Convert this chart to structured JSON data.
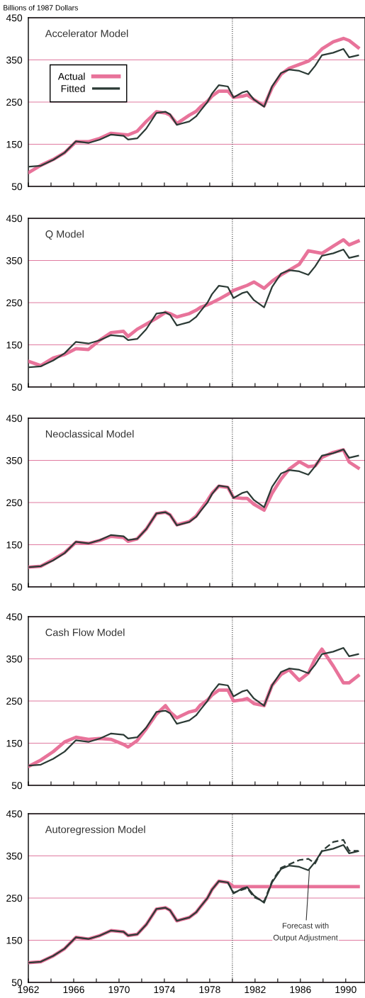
{
  "chart_data": [
    {
      "type": "line",
      "title": "Accelerator Model",
      "ylabel": "Billions of 1987 Dollars",
      "xlim": [
        1962,
        1991.7
      ],
      "ylim": [
        50,
        450
      ],
      "yticks": [
        50,
        150,
        250,
        350,
        450
      ],
      "xticks": [
        1962,
        {
          "value": 1964,
          "label": null
        },
        1966,
        {
          "value": 1968,
          "label": null
        },
        1970,
        {
          "value": 1972,
          "label": null
        },
        1974,
        {
          "value": 1976,
          "label": null
        },
        1978,
        {
          "value": 1980,
          "label": null
        },
        1982,
        {
          "value": 1984,
          "label": null
        },
        1986,
        {
          "value": 1988,
          "label": null
        },
        1990
      ],
      "tick_labels": "y",
      "grid": "y",
      "legend": "top left",
      "line_style": "solid",
      "x": [
        1962.1,
        1963.1,
        1964.2,
        1965.2,
        1966.2,
        1967.3,
        1968.3,
        1969.3,
        1970.4,
        1970.8,
        1971.6,
        1972.4,
        1973.3,
        1974.1,
        1974.5,
        1975.1,
        1976.2,
        1976.8,
        1977.2,
        1977.8,
        1978.2,
        1978.8,
        1979.6,
        1980.1,
        1980.9,
        1981.3,
        1981.9,
        1982.8,
        1983.5,
        1984.3,
        1985.0,
        1985.9,
        1986.7,
        1987.3,
        1987.9,
        1988.9,
        1989.8,
        1990.3,
        1991.1
      ],
      "ref_lines": [
        {
          "axis": "x",
          "value": 1980,
          "color": "#333333",
          "line_style": "dotted"
        }
      ],
      "series": [
        {
          "name": "Actual",
          "color": "#e8739a",
          "values": [
            84,
            100,
            114,
            130,
            156,
            156,
            164,
            176,
            173,
            172,
            181,
            204,
            227,
            224,
            219,
            199,
            219,
            228,
            239,
            252,
            264,
            276,
            276,
            261,
            264,
            267,
            256,
            241,
            284,
            316,
            330,
            339,
            347,
            359,
            376,
            393,
            401,
            396,
            379
          ]
        },
        {
          "name": "Fitted",
          "color": "#2b3a35",
          "values": [
            97,
            99,
            113,
            130,
            157,
            153,
            161,
            173,
            170,
            161,
            164,
            187,
            224,
            227,
            221,
            196,
            204,
            216,
            230,
            250,
            270,
            290,
            287,
            261,
            273,
            276,
            256,
            239,
            287,
            319,
            327,
            324,
            316,
            336,
            361,
            367,
            376,
            356,
            361
          ]
        }
      ]
    },
    {
      "type": "line",
      "title": "Q Model",
      "xlim": [
        1962,
        1991.7
      ],
      "ylim": [
        50,
        450
      ],
      "yticks": [
        50,
        150,
        250,
        350,
        450
      ],
      "xticks": [
        1962,
        {
          "value": 1964,
          "label": null
        },
        1966,
        {
          "value": 1968,
          "label": null
        },
        1970,
        {
          "value": 1972,
          "label": null
        },
        1974,
        {
          "value": 1976,
          "label": null
        },
        1978,
        {
          "value": 1980,
          "label": null
        },
        1982,
        {
          "value": 1984,
          "label": null
        },
        1986,
        {
          "value": 1988,
          "label": null
        },
        1990
      ],
      "tick_labels": "y",
      "grid": "y",
      "line_style": "solid",
      "x": [
        1962.1,
        1963.1,
        1964.2,
        1965.2,
        1966.2,
        1967.3,
        1968.3,
        1969.3,
        1970.4,
        1970.8,
        1971.6,
        1972.4,
        1973.3,
        1974.1,
        1974.5,
        1975.1,
        1976.2,
        1976.8,
        1977.2,
        1977.8,
        1978.2,
        1978.8,
        1979.6,
        1980.1,
        1980.9,
        1981.3,
        1981.9,
        1982.8,
        1983.5,
        1984.3,
        1985.0,
        1985.9,
        1986.7,
        1987.3,
        1987.9,
        1988.9,
        1989.8,
        1990.3,
        1991.1
      ],
      "ref_lines": [
        {
          "axis": "x",
          "value": 1980,
          "color": "#333333",
          "line_style": "dotted"
        }
      ],
      "series": [
        {
          "color": "#e8739a",
          "values": [
            110,
            101,
            119,
            127,
            141,
            139,
            161,
            179,
            182,
            170,
            187,
            199,
            213,
            227,
            224,
            216,
            224,
            232,
            239,
            245,
            250,
            258,
            270,
            279,
            287,
            291,
            299,
            284,
            301,
            316,
            327,
            341,
            373,
            370,
            367,
            384,
            399,
            387,
            396
          ]
        },
        {
          "color": "#2b3a35",
          "values": [
            97,
            99,
            113,
            130,
            157,
            153,
            161,
            173,
            170,
            161,
            164,
            187,
            224,
            227,
            221,
            196,
            204,
            216,
            230,
            250,
            270,
            290,
            287,
            261,
            273,
            276,
            256,
            239,
            287,
            319,
            327,
            324,
            316,
            336,
            361,
            367,
            376,
            356,
            361
          ]
        }
      ]
    },
    {
      "type": "line",
      "title": "Neoclassical Model",
      "xlim": [
        1962,
        1991.7
      ],
      "ylim": [
        50,
        450
      ],
      "yticks": [
        50,
        150,
        250,
        350,
        450
      ],
      "xticks": [
        1962,
        {
          "value": 1964,
          "label": null
        },
        1966,
        {
          "value": 1968,
          "label": null
        },
        1970,
        {
          "value": 1972,
          "label": null
        },
        1974,
        {
          "value": 1976,
          "label": null
        },
        1978,
        {
          "value": 1980,
          "label": null
        },
        1982,
        {
          "value": 1984,
          "label": null
        },
        1986,
        {
          "value": 1988,
          "label": null
        },
        1990
      ],
      "tick_labels": "y",
      "grid": "y",
      "line_style": "solid",
      "x": [
        1962.1,
        1963.1,
        1964.2,
        1965.2,
        1966.2,
        1967.3,
        1968.3,
        1969.3,
        1970.4,
        1970.8,
        1971.6,
        1972.4,
        1973.3,
        1974.1,
        1974.5,
        1975.1,
        1976.2,
        1976.8,
        1977.2,
        1977.8,
        1978.2,
        1978.8,
        1979.6,
        1980.1,
        1980.9,
        1981.3,
        1981.9,
        1982.8,
        1983.5,
        1984.3,
        1985.0,
        1985.9,
        1986.7,
        1987.3,
        1987.9,
        1988.9,
        1989.8,
        1990.3,
        1991.1
      ],
      "ref_lines": [
        {
          "axis": "x",
          "value": 1980,
          "color": "#333333",
          "line_style": "dotted"
        }
      ],
      "series": [
        {
          "color": "#e8739a",
          "values": [
            97,
            99,
            115,
            131,
            156,
            153,
            160,
            170,
            167,
            158,
            164,
            187,
            224,
            227,
            221,
            197,
            205,
            218,
            233,
            255,
            272,
            289,
            286,
            262,
            260,
            260,
            246,
            232,
            272,
            306,
            329,
            347,
            335,
            337,
            357,
            369,
            375,
            346,
            332
          ]
        },
        {
          "color": "#2b3a35",
          "values": [
            97,
            99,
            113,
            130,
            157,
            153,
            161,
            173,
            170,
            161,
            164,
            187,
            224,
            227,
            221,
            196,
            204,
            216,
            230,
            250,
            270,
            290,
            287,
            261,
            273,
            276,
            256,
            239,
            287,
            319,
            327,
            324,
            316,
            336,
            361,
            367,
            376,
            356,
            361
          ]
        }
      ]
    },
    {
      "type": "line",
      "title": "Cash Flow Model",
      "xlim": [
        1962,
        1991.7
      ],
      "ylim": [
        50,
        450
      ],
      "yticks": [
        50,
        150,
        250,
        350,
        450
      ],
      "xticks": [
        1962,
        {
          "value": 1964,
          "label": null
        },
        1966,
        {
          "value": 1968,
          "label": null
        },
        1970,
        {
          "value": 1972,
          "label": null
        },
        1974,
        {
          "value": 1976,
          "label": null
        },
        1978,
        {
          "value": 1980,
          "label": null
        },
        1982,
        {
          "value": 1984,
          "label": null
        },
        1986,
        {
          "value": 1988,
          "label": null
        },
        1990
      ],
      "tick_labels": "y",
      "grid": "y",
      "line_style": "solid",
      "x": [
        1962.1,
        1963.1,
        1964.2,
        1965.2,
        1966.2,
        1967.3,
        1968.3,
        1969.3,
        1970.4,
        1970.8,
        1971.6,
        1972.4,
        1973.3,
        1974.1,
        1974.5,
        1975.1,
        1976.2,
        1976.8,
        1977.2,
        1977.8,
        1978.2,
        1978.8,
        1979.6,
        1980.1,
        1980.9,
        1981.3,
        1981.9,
        1982.8,
        1983.5,
        1984.3,
        1985.0,
        1985.9,
        1986.7,
        1987.3,
        1987.9,
        1988.9,
        1989.8,
        1990.3,
        1991.1
      ],
      "ref_lines": [
        {
          "axis": "x",
          "value": 1980,
          "color": "#333333",
          "line_style": "dotted"
        }
      ],
      "series": [
        {
          "color": "#e8739a",
          "values": [
            96,
            110,
            130,
            153,
            164,
            159,
            161,
            159,
            147,
            141,
            156,
            184,
            219,
            239,
            224,
            210,
            224,
            228,
            241,
            252,
            264,
            276,
            276,
            250,
            253,
            256,
            244,
            239,
            287,
            313,
            324,
            299,
            316,
            350,
            373,
            333,
            293,
            293,
            310
          ]
        },
        {
          "color": "#2b3a35",
          "values": [
            97,
            99,
            113,
            130,
            157,
            153,
            161,
            173,
            170,
            161,
            164,
            187,
            224,
            227,
            221,
            196,
            204,
            216,
            230,
            250,
            270,
            290,
            287,
            261,
            273,
            276,
            256,
            239,
            287,
            319,
            327,
            324,
            316,
            336,
            361,
            367,
            376,
            356,
            361
          ]
        }
      ]
    },
    {
      "type": "line",
      "title": "Autoregression Model",
      "xlim": [
        1962,
        1991.7
      ],
      "ylim": [
        50,
        450
      ],
      "yticks": [
        50,
        150,
        250,
        350,
        450
      ],
      "xticks": [
        1962,
        {
          "value": 1964,
          "label": null
        },
        1966,
        {
          "value": 1968,
          "label": null
        },
        1970,
        {
          "value": 1972,
          "label": null
        },
        1974,
        {
          "value": 1976,
          "label": null
        },
        1978,
        {
          "value": 1980,
          "label": null
        },
        1982,
        {
          "value": 1984,
          "label": null
        },
        1986,
        {
          "value": 1988,
          "label": null
        },
        1990
      ],
      "grid": "y",
      "line_style": "solid",
      "x": [
        1962.1,
        1963.1,
        1964.2,
        1965.2,
        1966.2,
        1967.3,
        1968.3,
        1969.3,
        1970.4,
        1970.8,
        1971.6,
        1972.4,
        1973.3,
        1974.1,
        1974.5,
        1975.1,
        1976.2,
        1976.8,
        1977.2,
        1977.8,
        1978.2,
        1978.8,
        1979.6,
        1980.1,
        1980.9,
        1981.3,
        1981.9,
        1982.8,
        1983.5,
        1984.3,
        1985.0,
        1985.9,
        1986.7,
        1987.3,
        1987.9,
        1988.9,
        1989.8,
        1990.3,
        1991.1
      ],
      "ref_lines": [
        {
          "axis": "x",
          "value": 1980,
          "color": "#333333",
          "line_style": "dotted"
        }
      ],
      "annotations": [
        {
          "text": "Forecast with\nOutput Adjustment",
          "x": 1986.8,
          "y": 320
        }
      ],
      "series": [
        {
          "color": "#e8739a",
          "values": [
            97,
            99,
            113,
            130,
            157,
            153,
            161,
            173,
            170,
            161,
            164,
            187,
            224,
            227,
            221,
            196,
            204,
            216,
            230,
            250,
            270,
            290,
            287,
            277,
            277,
            277,
            277,
            277,
            277,
            277,
            277,
            277,
            277,
            277,
            277,
            277,
            277,
            277,
            277
          ]
        },
        {
          "color": "#2b3a35",
          "values": [
            97,
            99,
            113,
            130,
            157,
            153,
            161,
            173,
            170,
            161,
            164,
            187,
            224,
            227,
            221,
            196,
            204,
            216,
            230,
            250,
            270,
            290,
            287,
            261,
            273,
            276,
            256,
            239,
            287,
            319,
            327,
            324,
            316,
            336,
            361,
            367,
            376,
            356,
            361
          ]
        },
        {
          "color": "#2b3a35",
          "line_style": "dashed",
          "x": [
            1979.6,
            1980.1,
            1980.9,
            1981.3,
            1981.9,
            1982.8,
            1983.5,
            1984.3,
            1985.0,
            1985.9,
            1986.7,
            1987.3,
            1987.9,
            1988.9,
            1989.8,
            1990.3,
            1991.1
          ],
          "values": [
            287,
            263,
            270,
            274,
            252,
            242,
            290,
            322,
            330,
            340,
            343,
            332,
            362,
            383,
            388,
            362,
            362
          ]
        }
      ]
    }
  ]
}
